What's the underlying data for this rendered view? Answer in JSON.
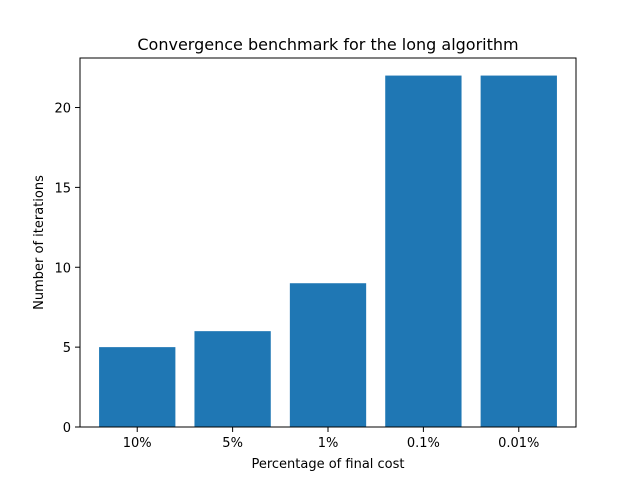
{
  "chart_data": {
    "type": "bar",
    "title": "Convergence benchmark for the long algorithm",
    "xlabel": "Percentage of final cost",
    "ylabel": "Number of iterations",
    "categories": [
      "10%",
      "5%",
      "1%",
      "0.1%",
      "0.01%"
    ],
    "values": [
      5,
      6,
      9,
      22,
      22
    ],
    "ylim": [
      0,
      23.1
    ],
    "yticks": [
      0,
      5,
      10,
      15,
      20
    ],
    "grid": false,
    "bar_color": "#1f77b4"
  }
}
